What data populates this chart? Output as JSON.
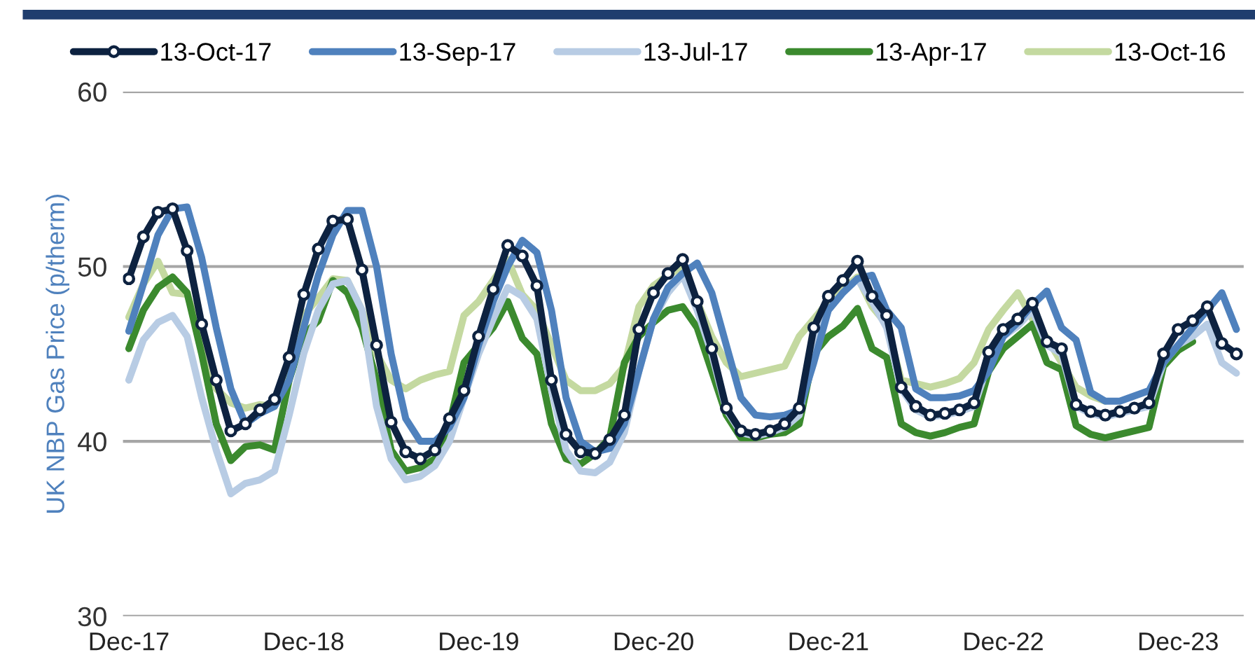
{
  "chart_data": {
    "type": "line",
    "ylabel": "UK NBP Gas Price (p/therm)",
    "x": [
      "2017-12",
      "2018-01",
      "2018-02",
      "2018-03",
      "2018-04",
      "2018-05",
      "2018-06",
      "2018-07",
      "2018-08",
      "2018-09",
      "2018-10",
      "2018-11",
      "2018-12",
      "2019-01",
      "2019-02",
      "2019-03",
      "2019-04",
      "2019-05",
      "2019-06",
      "2019-07",
      "2019-08",
      "2019-09",
      "2019-10",
      "2019-11",
      "2019-12",
      "2020-01",
      "2020-02",
      "2020-03",
      "2020-04",
      "2020-05",
      "2020-06",
      "2020-07",
      "2020-08",
      "2020-09",
      "2020-10",
      "2020-11",
      "2020-12",
      "2021-01",
      "2021-02",
      "2021-03",
      "2021-04",
      "2021-05",
      "2021-06",
      "2021-07",
      "2021-08",
      "2021-09",
      "2021-10",
      "2021-11",
      "2021-12",
      "2022-01",
      "2022-02",
      "2022-03",
      "2022-04",
      "2022-05",
      "2022-06",
      "2022-07",
      "2022-08",
      "2022-09",
      "2022-10",
      "2022-11",
      "2022-12",
      "2023-01",
      "2023-02",
      "2023-03",
      "2023-04",
      "2023-05",
      "2023-06",
      "2023-07",
      "2023-08",
      "2023-09",
      "2023-10",
      "2023-11",
      "2023-12",
      "2024-01",
      "2024-02",
      "2024-03",
      "2024-04"
    ],
    "xlim": [
      "2017-11-19",
      "2024-04-16"
    ],
    "xticks": [
      {
        "value": "2017-12",
        "label": "Dec-17"
      },
      {
        "value": "2018-12",
        "label": "Dec-18"
      },
      {
        "value": "2019-12",
        "label": "Dec-19"
      },
      {
        "value": "2020-12",
        "label": "Dec-20"
      },
      {
        "value": "2021-12",
        "label": "Dec-21"
      },
      {
        "value": "2022-12",
        "label": "Dec-22"
      },
      {
        "value": "2023-12",
        "label": "Dec-23"
      }
    ],
    "ylim": [
      30,
      60
    ],
    "yticks": [
      30,
      40,
      50,
      60
    ],
    "grid": "y",
    "legend": "top",
    "series": [
      {
        "name": "13-Oct-17",
        "color": "#0d2240",
        "marker": "circle",
        "values": [
          49.3,
          51.7,
          53.1,
          53.3,
          50.9,
          46.7,
          43.5,
          40.6,
          41.0,
          41.8,
          42.4,
          44.8,
          48.4,
          51.0,
          52.6,
          52.7,
          49.8,
          45.5,
          41.1,
          39.4,
          39.0,
          39.5,
          41.3,
          42.9,
          46.0,
          48.7,
          51.2,
          50.6,
          48.9,
          43.5,
          40.4,
          39.4,
          39.3,
          40.1,
          41.5,
          46.4,
          48.5,
          49.6,
          50.4,
          48.0,
          45.3,
          41.9,
          40.6,
          40.4,
          40.6,
          41.0,
          41.9,
          46.5,
          48.3,
          49.2,
          50.3,
          48.3,
          47.2,
          43.1,
          42.0,
          41.5,
          41.6,
          41.8,
          42.2,
          45.1,
          46.4,
          47.0,
          47.9,
          45.7,
          45.3,
          42.1,
          41.7,
          41.5,
          41.7,
          41.9,
          42.2,
          45.0,
          46.4,
          46.9,
          47.7,
          45.6,
          45.0
        ]
      },
      {
        "name": "13-Sep-17",
        "color": "#4f81bd",
        "values": [
          46.3,
          49.0,
          51.8,
          53.3,
          53.4,
          50.5,
          46.5,
          43.0,
          41.0,
          41.6,
          42.0,
          43.5,
          46.5,
          49.5,
          51.8,
          53.2,
          53.2,
          50.0,
          45.0,
          41.3,
          40.0,
          40.0,
          40.8,
          42.5,
          45.5,
          48.0,
          50.0,
          51.5,
          50.8,
          47.5,
          42.5,
          40.0,
          39.4,
          39.6,
          41.0,
          44.0,
          47.0,
          48.8,
          49.6,
          50.2,
          48.5,
          45.5,
          42.5,
          41.5,
          41.4,
          41.5,
          41.8,
          44.5,
          47.5,
          48.5,
          49.3,
          49.5,
          47.5,
          46.5,
          43.0,
          42.5,
          42.5,
          42.6,
          42.9,
          44.0,
          46.0,
          46.8,
          47.8,
          48.6,
          46.5,
          45.8,
          42.8,
          42.3,
          42.3,
          42.6,
          42.9,
          44.5,
          45.5,
          46.5,
          47.5,
          48.5,
          46.4
        ]
      },
      {
        "name": "13-Jul-17",
        "color": "#b8cce4",
        "values": [
          43.5,
          45.8,
          46.8,
          47.2,
          46.0,
          42.5,
          39.5,
          37.0,
          37.6,
          37.8,
          38.3,
          41.5,
          45.0,
          47.5,
          49.0,
          49.2,
          47.5,
          42.0,
          39.0,
          37.8,
          38.0,
          38.6,
          40.0,
          42.5,
          45.0,
          47.0,
          48.8,
          48.3,
          47.0,
          43.0,
          39.5,
          38.3,
          38.2,
          38.8,
          40.5,
          44.0,
          47.0,
          48.5,
          49.5,
          47.5,
          45.0,
          41.8,
          40.5,
          40.3,
          40.5,
          40.8,
          41.5,
          45.5,
          47.5,
          48.5,
          49.3,
          48.0,
          46.5,
          43.0,
          41.8,
          41.4,
          41.5,
          41.7,
          42.0,
          44.5,
          46.0,
          46.6,
          47.5,
          45.5,
          45.0,
          42.0,
          41.6,
          41.4,
          41.6,
          41.8,
          42.0,
          44.5,
          45.5,
          46.0,
          46.7,
          44.5,
          43.9
        ]
      },
      {
        "name": "13-Apr-17",
        "color": "#3b8a2e",
        "values": [
          45.3,
          47.5,
          48.8,
          49.4,
          48.5,
          45.0,
          41.0,
          38.9,
          39.7,
          39.8,
          39.5,
          43.5,
          46.1,
          46.9,
          49.2,
          48.5,
          46.5,
          43.5,
          39.5,
          38.3,
          38.5,
          39.0,
          41.0,
          44.5,
          45.5,
          46.5,
          48.0,
          45.9,
          45.0,
          41.0,
          39.0,
          38.7,
          39.3,
          40.2,
          44.5,
          46.0,
          46.8,
          47.5,
          47.7,
          46.5,
          44.0,
          41.5,
          40.2,
          40.2,
          40.4,
          40.5,
          41.0,
          45.0,
          46.0,
          46.6,
          47.6,
          45.3,
          44.8,
          41.0,
          40.5,
          40.3,
          40.5,
          40.8,
          41.0,
          44.0,
          45.3,
          46.0,
          46.7,
          44.5,
          44.1,
          40.9,
          40.4,
          40.2,
          40.4,
          40.6,
          40.8,
          44.3,
          45.2,
          45.7,
          null,
          null,
          null
        ]
      },
      {
        "name": "13-Oct-16",
        "color": "#c4d9a0",
        "values": [
          47.1,
          49.0,
          50.3,
          48.5,
          48.4,
          46.0,
          43.0,
          42.2,
          41.9,
          42.1,
          42.0,
          44.5,
          47.2,
          48.2,
          49.3,
          49.2,
          47.5,
          45.0,
          43.5,
          43.0,
          43.5,
          43.8,
          44.0,
          47.2,
          48.0,
          49.2,
          50.4,
          48.4,
          47.5,
          45.5,
          43.5,
          42.9,
          42.9,
          43.3,
          44.3,
          47.7,
          48.9,
          49.5,
          50.0,
          48.0,
          46.0,
          44.5,
          43.7,
          43.9,
          44.1,
          44.3,
          46.0,
          47.0,
          48.0,
          48.7,
          49.4,
          47.7,
          46.7,
          43.5,
          43.3,
          43.1,
          43.3,
          43.6,
          44.5,
          46.4,
          47.5,
          48.5,
          47.0,
          45.9,
          44.5,
          43.1,
          42.6,
          42.3,
          null,
          null,
          null,
          null,
          null,
          null,
          null,
          null,
          null
        ]
      }
    ]
  }
}
